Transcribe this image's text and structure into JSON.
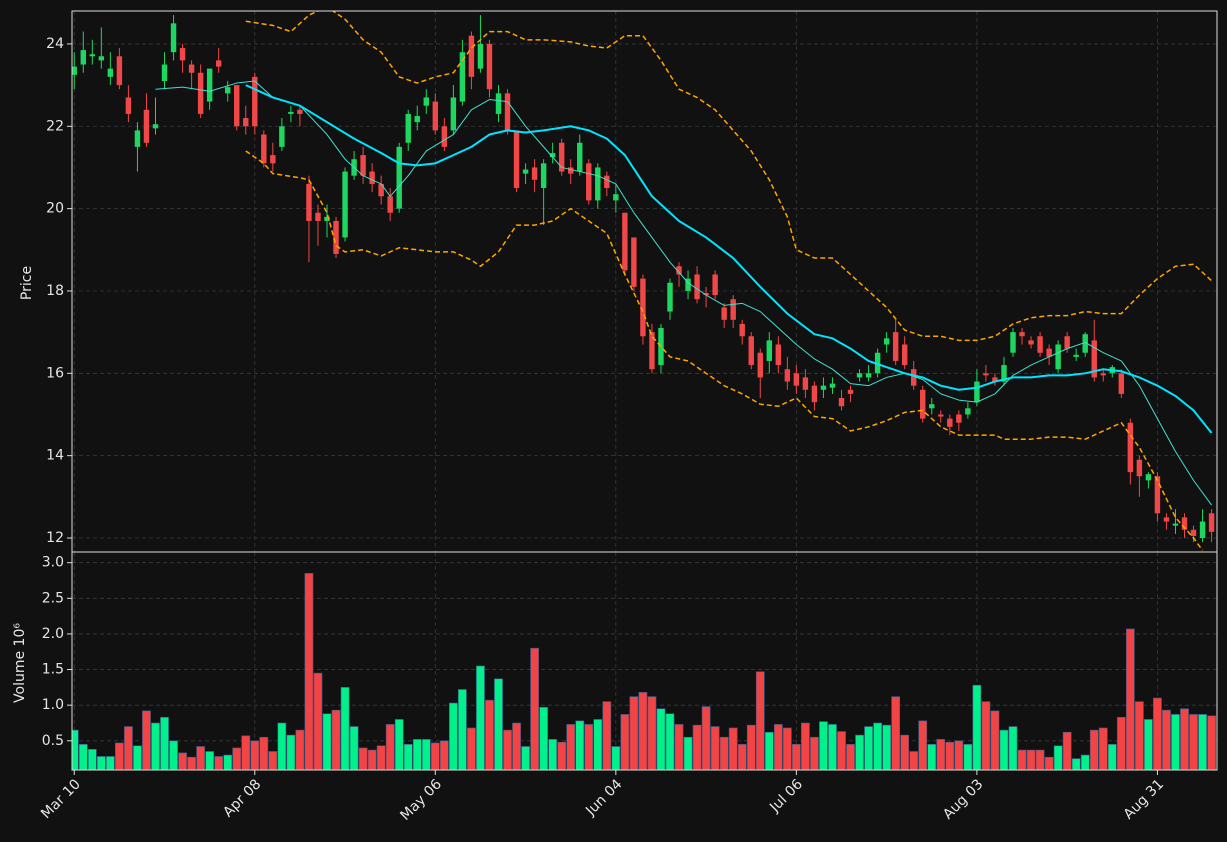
{
  "chart_data": [
    {
      "type": "candlestick",
      "ylabel": "Price",
      "ylim": [
        11.66,
        24.8
      ],
      "yticks": [
        12,
        14,
        16,
        18,
        20,
        22,
        24
      ],
      "grid": true,
      "up_color": "#1ed760",
      "down_color": "#f04848",
      "open": [
        23.25,
        23.5,
        23.7,
        23.6,
        23.2,
        23.7,
        22.7,
        21.5,
        22.4,
        21.95,
        23.1,
        23.8,
        23.9,
        23.5,
        23.3,
        22.6,
        23.6,
        22.8,
        23.0,
        22.2,
        23.2,
        21.8,
        21.3,
        21.5,
        22.3,
        22.4,
        20.6,
        19.9,
        19.7,
        19.7,
        19.3,
        20.8,
        21.3,
        20.9,
        20.6,
        20.3,
        20.0,
        21.6,
        22.1,
        22.5,
        22.6,
        22.0,
        21.9,
        22.6,
        24.2,
        23.4,
        24.0,
        22.3,
        22.8,
        21.9,
        20.85,
        21.0,
        20.5,
        21.25,
        21.6,
        21.0,
        20.9,
        21.1,
        20.2,
        20.8,
        20.2,
        19.9,
        19.3,
        18.3,
        17.0,
        16.2,
        17.5,
        18.6,
        18.0,
        18.4,
        17.95,
        18.4,
        17.6,
        17.8,
        17.2,
        16.9,
        16.5,
        16.3,
        16.7,
        16.1,
        16.0,
        15.9,
        15.7,
        15.6,
        15.65,
        15.4,
        15.6,
        15.9,
        15.9,
        16.0,
        16.7,
        17.0,
        16.7,
        16.1,
        15.6,
        15.15,
        15.0,
        14.9,
        15.0,
        15.0,
        15.3,
        16.0,
        15.9,
        15.8,
        16.5,
        17.0,
        16.8,
        16.9,
        16.6,
        16.1,
        16.9,
        16.4,
        16.5,
        16.8,
        16.0,
        16.0,
        16.0,
        14.8,
        13.9,
        13.4,
        13.5,
        12.5,
        12.3,
        12.5,
        12.2,
        12.0,
        12.6
      ],
      "high": [
        23.8,
        24.3,
        24.1,
        24.4,
        23.8,
        23.9,
        23.0,
        22.1,
        22.8,
        22.7,
        23.8,
        24.7,
        24.0,
        23.6,
        23.5,
        23.4,
        23.9,
        23.1,
        23.0,
        22.5,
        23.3,
        21.9,
        21.6,
        22.2,
        22.5,
        22.5,
        20.8,
        20.1,
        20.1,
        19.8,
        21.0,
        21.4,
        21.5,
        21.1,
        20.8,
        20.5,
        21.6,
        22.4,
        22.5,
        22.9,
        22.8,
        22.2,
        23.0,
        24.1,
        24.3,
        24.7,
        24.1,
        23.0,
        22.9,
        21.9,
        21.1,
        21.2,
        21.2,
        21.6,
        21.7,
        21.2,
        21.8,
        21.2,
        21.1,
        20.9,
        20.6,
        19.9,
        19.3,
        18.4,
        17.2,
        17.2,
        18.3,
        18.7,
        18.5,
        18.6,
        18.1,
        18.5,
        17.7,
        17.9,
        17.3,
        17.0,
        16.6,
        17.0,
        16.9,
        16.4,
        16.2,
        16.1,
        15.8,
        15.9,
        15.9,
        15.6,
        15.7,
        16.1,
        16.2,
        16.6,
        17.0,
        17.3,
        16.9,
        16.3,
        15.7,
        15.4,
        15.1,
        15.0,
        15.1,
        15.3,
        16.1,
        16.2,
        16.0,
        16.4,
        17.1,
        17.1,
        16.9,
        17.0,
        16.7,
        16.8,
        17.0,
        16.6,
        17.0,
        17.3,
        16.1,
        16.2,
        16.1,
        14.9,
        14.0,
        13.6,
        13.6,
        12.6,
        12.7,
        12.6,
        12.3,
        12.7,
        12.7
      ],
      "low": [
        22.9,
        23.3,
        23.5,
        23.4,
        23.0,
        22.9,
        22.1,
        20.9,
        21.5,
        21.8,
        22.9,
        23.6,
        23.3,
        22.9,
        22.2,
        22.4,
        23.3,
        22.6,
        21.9,
        21.8,
        21.8,
        21.0,
        20.9,
        21.4,
        22.1,
        22.0,
        18.7,
        19.1,
        19.3,
        18.8,
        19.2,
        20.7,
        20.6,
        20.4,
        20.1,
        19.7,
        19.9,
        21.4,
        21.9,
        22.3,
        21.8,
        21.4,
        21.8,
        22.5,
        22.9,
        23.3,
        22.7,
        22.1,
        21.8,
        20.4,
        20.6,
        20.4,
        19.6,
        21.1,
        20.8,
        20.6,
        20.8,
        20.1,
        20.0,
        20.3,
        19.9,
        18.4,
        18.0,
        16.7,
        16.0,
        16.0,
        17.3,
        18.1,
        17.8,
        17.7,
        17.6,
        17.8,
        17.1,
        17.1,
        16.7,
        16.1,
        15.4,
        16.0,
        16.0,
        15.6,
        15.5,
        15.4,
        15.1,
        15.4,
        15.5,
        15.1,
        15.3,
        15.8,
        15.8,
        15.9,
        16.5,
        16.2,
        16.1,
        15.6,
        14.8,
        15.0,
        14.8,
        14.5,
        14.6,
        14.9,
        15.2,
        15.8,
        15.7,
        15.7,
        16.4,
        16.7,
        16.6,
        16.4,
        16.2,
        16.0,
        16.5,
        16.3,
        16.4,
        15.8,
        15.8,
        15.9,
        15.4,
        13.3,
        13.0,
        13.2,
        12.4,
        12.2,
        12.1,
        12.0,
        11.9,
        11.9,
        11.9
      ],
      "close": [
        23.45,
        23.85,
        23.75,
        23.7,
        23.4,
        23.0,
        22.3,
        21.9,
        21.6,
        22.05,
        23.5,
        24.5,
        23.6,
        23.3,
        22.3,
        23.4,
        23.45,
        22.95,
        22.0,
        22.0,
        22.0,
        21.1,
        21.1,
        22.0,
        22.35,
        22.3,
        19.7,
        19.7,
        19.8,
        18.9,
        20.9,
        21.2,
        20.8,
        20.6,
        20.3,
        19.9,
        21.5,
        22.3,
        22.25,
        22.7,
        21.9,
        21.5,
        22.7,
        23.8,
        23.2,
        24.0,
        22.9,
        22.8,
        21.9,
        20.5,
        20.95,
        20.7,
        21.1,
        21.35,
        20.9,
        20.85,
        21.6,
        20.2,
        21.0,
        20.5,
        20.35,
        18.5,
        18.1,
        16.9,
        16.1,
        17.1,
        18.2,
        18.4,
        18.3,
        17.8,
        17.9,
        17.9,
        17.3,
        17.3,
        16.9,
        16.2,
        15.9,
        16.8,
        16.2,
        15.8,
        15.7,
        15.6,
        15.3,
        15.7,
        15.75,
        15.2,
        15.5,
        16.0,
        16.0,
        16.5,
        16.85,
        16.3,
        16.2,
        15.7,
        14.9,
        15.25,
        14.95,
        14.7,
        14.8,
        15.15,
        15.8,
        15.95,
        15.8,
        16.2,
        17.0,
        16.9,
        16.7,
        16.5,
        16.4,
        16.7,
        16.6,
        16.45,
        16.95,
        15.9,
        15.95,
        16.15,
        15.5,
        13.6,
        13.5,
        13.55,
        12.6,
        12.4,
        12.35,
        12.2,
        12.05,
        12.4,
        12.15
      ],
      "lines": [
        {
          "color": "#40e0d0",
          "width": 1,
          "x": [
            9,
            12,
            15,
            18,
            20,
            22,
            25,
            28,
            30,
            32,
            34,
            35,
            37,
            39,
            42,
            44,
            46,
            48,
            50,
            52,
            54,
            56,
            58,
            60,
            62,
            64,
            66,
            68,
            70,
            72,
            74,
            76,
            78,
            80,
            82,
            84,
            86,
            88,
            90,
            92,
            94,
            96,
            98,
            100,
            102,
            104,
            106,
            108,
            110,
            112,
            114,
            116,
            118,
            120,
            122,
            124,
            126
          ],
          "values": [
            22.9,
            22.95,
            22.85,
            23.05,
            23.1,
            22.7,
            22.5,
            21.8,
            21.2,
            20.8,
            20.6,
            20.3,
            20.8,
            21.4,
            21.8,
            22.4,
            22.65,
            22.6,
            22.0,
            21.5,
            21.0,
            20.9,
            20.8,
            20.6,
            19.9,
            19.3,
            18.7,
            18.2,
            17.9,
            17.65,
            17.7,
            17.5,
            17.1,
            16.7,
            16.35,
            16.1,
            15.75,
            15.7,
            15.9,
            16.0,
            15.85,
            15.5,
            15.35,
            15.3,
            15.5,
            15.95,
            16.2,
            16.4,
            16.6,
            16.75,
            16.5,
            16.3,
            15.7,
            14.9,
            14.1,
            13.4,
            12.8
          ]
        },
        {
          "color": "#00e5ff",
          "width": 2,
          "x": [
            19,
            22,
            25,
            28,
            31,
            34,
            36,
            38,
            40,
            42,
            44,
            46,
            48,
            50,
            52,
            55,
            57,
            59,
            61,
            64,
            67,
            70,
            73,
            76,
            79,
            82,
            84,
            86,
            88,
            90,
            92,
            94,
            96,
            98,
            100,
            102,
            104,
            106,
            108,
            110,
            112,
            114,
            116,
            118,
            120,
            122,
            124,
            126
          ],
          "values": [
            23.0,
            22.7,
            22.5,
            22.1,
            21.7,
            21.35,
            21.1,
            21.05,
            21.1,
            21.3,
            21.5,
            21.8,
            21.9,
            21.85,
            21.9,
            22.0,
            21.9,
            21.7,
            21.3,
            20.3,
            19.7,
            19.3,
            18.8,
            18.1,
            17.45,
            16.95,
            16.85,
            16.6,
            16.3,
            16.15,
            16.0,
            15.9,
            15.7,
            15.6,
            15.65,
            15.8,
            15.9,
            15.9,
            15.95,
            15.95,
            16.0,
            16.1,
            16.05,
            15.9,
            15.7,
            15.45,
            15.1,
            14.55
          ]
        },
        {
          "color": "#ffa500",
          "width": 1.5,
          "dash": true,
          "x": [
            19,
            22,
            24,
            26,
            28,
            30,
            32,
            34,
            36,
            38,
            40,
            42,
            44,
            46,
            48,
            50,
            52,
            55,
            57,
            59,
            61,
            63,
            65,
            67,
            69,
            71,
            73,
            75,
            77,
            79,
            80,
            82,
            84,
            86,
            88,
            90,
            92,
            94,
            96,
            98,
            100,
            102,
            104,
            106,
            108,
            110,
            112,
            114,
            116,
            118,
            120,
            122,
            124,
            126
          ],
          "values": [
            24.55,
            24.45,
            24.3,
            24.7,
            24.9,
            24.6,
            24.1,
            23.8,
            23.2,
            23.05,
            23.2,
            23.3,
            23.9,
            24.3,
            24.3,
            24.1,
            24.1,
            24.05,
            23.95,
            23.9,
            24.2,
            24.2,
            23.6,
            22.9,
            22.7,
            22.4,
            21.9,
            21.4,
            20.7,
            19.8,
            19.0,
            18.8,
            18.8,
            18.4,
            18.0,
            17.6,
            17.05,
            16.9,
            16.9,
            16.8,
            16.8,
            16.9,
            17.2,
            17.35,
            17.4,
            17.4,
            17.5,
            17.45,
            17.45,
            17.9,
            18.3,
            18.6,
            18.65,
            18.25
          ]
        },
        {
          "color": "#ffa500",
          "width": 1.5,
          "dash": true,
          "x": [
            19,
            21,
            22,
            25,
            26,
            28,
            29,
            30,
            32,
            34,
            36,
            38,
            40,
            42,
            44,
            45,
            47,
            49,
            51,
            53,
            55,
            57,
            59,
            61,
            63,
            64,
            66,
            68,
            70,
            72,
            74,
            76,
            78,
            80,
            82,
            84,
            86,
            88,
            90,
            92,
            94,
            96,
            98,
            100,
            102,
            103,
            106,
            108,
            110,
            112,
            114,
            116,
            118,
            120,
            122,
            124,
            125
          ],
          "values": [
            21.4,
            21.1,
            20.85,
            20.75,
            20.7,
            19.9,
            19.1,
            18.95,
            19.0,
            18.85,
            19.05,
            19.0,
            18.95,
            18.95,
            18.75,
            18.6,
            18.95,
            19.6,
            19.6,
            19.7,
            20.0,
            19.7,
            19.4,
            18.4,
            17.5,
            16.9,
            16.4,
            16.3,
            16.0,
            15.7,
            15.5,
            15.25,
            15.2,
            15.4,
            14.95,
            14.9,
            14.6,
            14.7,
            14.85,
            15.05,
            15.1,
            14.7,
            14.5,
            14.5,
            14.5,
            14.4,
            14.4,
            14.45,
            14.45,
            14.4,
            14.6,
            14.8,
            14.2,
            13.4,
            12.5,
            12.0,
            11.7
          ]
        }
      ]
    },
    {
      "type": "bar",
      "ylabel": "Volume  10⁶",
      "ylim": [
        0.09,
        3.15
      ],
      "yticks": [
        0.5,
        {
          "value": 1,
          "label": "1.0"
        },
        1.5,
        {
          "value": 2,
          "label": "2.0"
        },
        2.5,
        {
          "value": 3,
          "label": "3.0"
        }
      ],
      "grid": true,
      "up_color": "#00f08c",
      "down_color": "#f24444",
      "xlim": [
        -0.25,
        126.6
      ],
      "xticks": [
        {
          "value": 0,
          "label": "Mar 10"
        },
        {
          "value": 20,
          "label": "Apr 08"
        },
        {
          "value": 40,
          "label": "May 06"
        },
        {
          "value": 60,
          "label": "Jun 04"
        },
        {
          "value": 80,
          "label": "Jul 06"
        },
        {
          "value": 100,
          "label": "Aug 03"
        },
        {
          "value": 120,
          "label": "Aug 31"
        }
      ],
      "values": [
        0.65,
        0.45,
        0.38,
        0.28,
        0.28,
        0.47,
        0.7,
        0.43,
        0.92,
        0.75,
        0.83,
        0.5,
        0.33,
        0.27,
        0.42,
        0.35,
        0.28,
        0.3,
        0.4,
        0.57,
        0.5,
        0.55,
        0.35,
        0.75,
        0.58,
        0.65,
        2.85,
        1.45,
        0.88,
        0.93,
        1.25,
        0.7,
        0.4,
        0.37,
        0.43,
        0.73,
        0.8,
        0.45,
        0.52,
        0.52,
        0.47,
        0.5,
        1.03,
        1.22,
        0.68,
        1.55,
        1.07,
        1.37,
        0.65,
        0.75,
        0.42,
        1.8,
        0.97,
        0.52,
        0.48,
        0.73,
        0.78,
        0.73,
        0.8,
        1.05,
        0.42,
        0.87,
        1.12,
        1.18,
        1.12,
        0.95,
        0.88,
        0.73,
        0.55,
        0.72,
        0.98,
        0.7,
        0.55,
        0.68,
        0.45,
        0.72,
        1.47,
        0.62,
        0.73,
        0.68,
        0.45,
        0.75,
        0.55,
        0.77,
        0.73,
        0.63,
        0.45,
        0.58,
        0.7,
        0.75,
        0.72,
        1.12,
        0.58,
        0.35,
        0.78,
        0.45,
        0.52,
        0.48,
        0.5,
        0.45,
        1.28,
        1.05,
        0.92,
        0.65,
        0.7,
        0.37,
        0.37,
        0.37,
        0.27,
        0.43,
        0.62,
        0.25,
        0.3,
        0.65,
        0.68,
        0.45,
        0.83,
        2.07,
        1.05,
        0.8,
        1.1,
        0.93,
        0.87,
        0.95,
        0.87,
        0.87,
        0.85
      ]
    }
  ]
}
